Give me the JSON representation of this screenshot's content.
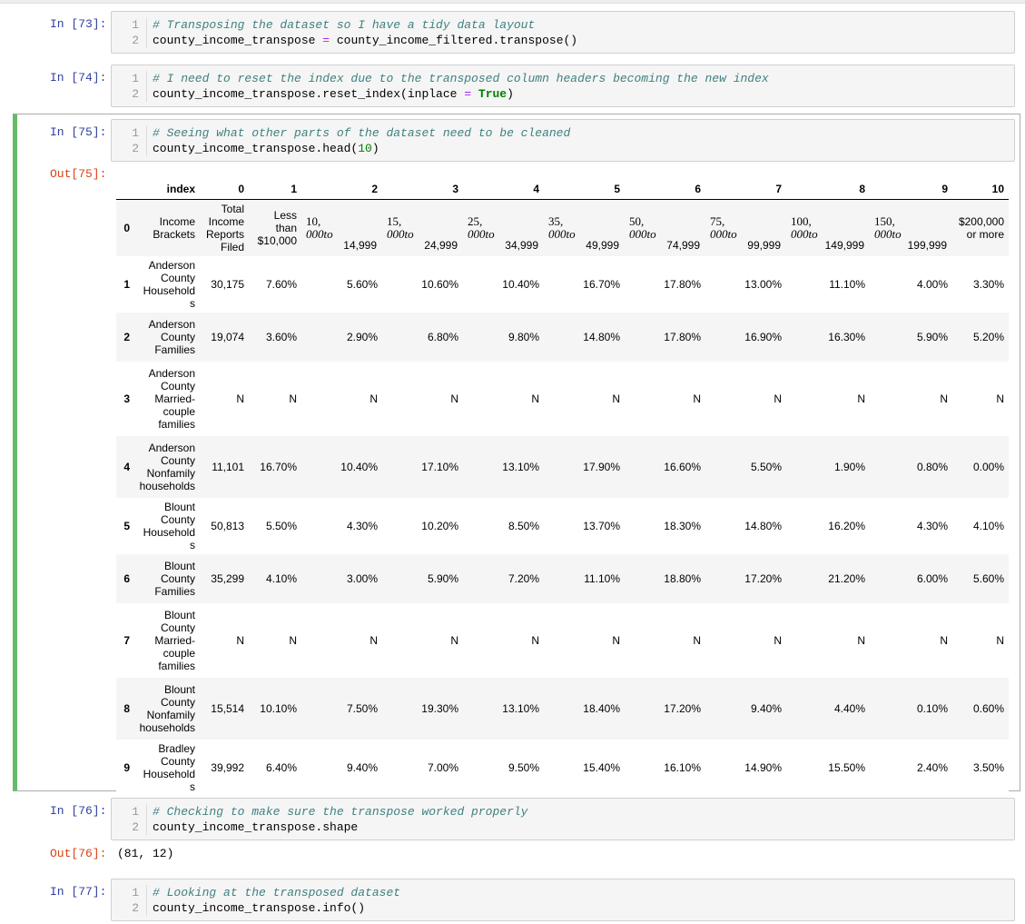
{
  "cells": {
    "c73": {
      "prompt": "In [73]:",
      "lines": [
        {
          "n": "1",
          "comment": "# Transposing the dataset so I have a tidy data layout"
        },
        {
          "n": "2",
          "lhs": "county_income_transpose ",
          "op": "=",
          "rhs": " county_income_filtered.transpose()"
        }
      ]
    },
    "c74": {
      "prompt": "In [74]:",
      "lines": [
        {
          "n": "1",
          "comment": "# I need to reset the index due to the transposed column headers becoming the new index"
        },
        {
          "n": "2",
          "pre": "county_income_transpose.reset_index(inplace ",
          "op": "=",
          "mid": " ",
          "kw": "True",
          "post": ")"
        }
      ]
    },
    "c75": {
      "prompt": "In [75]:",
      "out_prompt": "Out[75]:",
      "lines": [
        {
          "n": "1",
          "comment": "# Seeing what other parts of the dataset need to be cleaned"
        },
        {
          "n": "2",
          "pre": "county_income_transpose.head(",
          "num": "10",
          "post": ")"
        }
      ]
    },
    "c76": {
      "prompt": "In [76]:",
      "out_prompt": "Out[76]:",
      "output": "(81, 12)",
      "lines": [
        {
          "n": "1",
          "comment": "# Checking to make sure the transpose worked properly"
        },
        {
          "n": "2",
          "code": "county_income_transpose.shape"
        }
      ]
    },
    "c77": {
      "prompt": "In [77]:",
      "lines": [
        {
          "n": "1",
          "comment": "# Looking at the transposed dataset"
        },
        {
          "n": "2",
          "code": "county_income_transpose.info()"
        }
      ]
    }
  },
  "table": {
    "columns": [
      "",
      "index",
      "0",
      "1",
      "2",
      "3",
      "4",
      "5",
      "6",
      "7",
      "8",
      "9",
      "10"
    ],
    "header_row": {
      "idx": "0",
      "index": "Income Brackets",
      "c0": "Total Income Reports Filed",
      "c1": "Less than $10,000",
      "c2": {
        "top": "10,",
        "mid": "000to",
        "sub": "14,999"
      },
      "c3": {
        "top": "15,",
        "mid": "000to",
        "sub": "24,999"
      },
      "c4": {
        "top": "25,",
        "mid": "000to",
        "sub": "34,999"
      },
      "c5": {
        "top": "35,",
        "mid": "000to",
        "sub": "49,999"
      },
      "c6": {
        "top": "50,",
        "mid": "000to",
        "sub": "74,999"
      },
      "c7": {
        "top": "75,",
        "mid": "000to",
        "sub": "99,999"
      },
      "c8": {
        "top": "100,",
        "mid": "000to",
        "sub": "149,999"
      },
      "c9": {
        "top": "150,",
        "mid": "000to",
        "sub": "199,999"
      },
      "c10": "$200,000 or more"
    },
    "rows": [
      [
        "1",
        "Anderson County Households",
        "30,175",
        "7.60%",
        "5.60%",
        "10.60%",
        "10.40%",
        "16.70%",
        "17.80%",
        "13.00%",
        "11.10%",
        "4.00%",
        "3.30%"
      ],
      [
        "2",
        "Anderson County Families",
        "19,074",
        "3.60%",
        "2.90%",
        "6.80%",
        "9.80%",
        "14.80%",
        "17.80%",
        "16.90%",
        "16.30%",
        "5.90%",
        "5.20%"
      ],
      [
        "3",
        "Anderson County Married-couple families",
        "N",
        "N",
        "N",
        "N",
        "N",
        "N",
        "N",
        "N",
        "N",
        "N",
        "N"
      ],
      [
        "4",
        "Anderson County Nonfamily households",
        "11,101",
        "16.70%",
        "10.40%",
        "17.10%",
        "13.10%",
        "17.90%",
        "16.60%",
        "5.50%",
        "1.90%",
        "0.80%",
        "0.00%"
      ],
      [
        "5",
        "Blount County Households",
        "50,813",
        "5.50%",
        "4.30%",
        "10.20%",
        "8.50%",
        "13.70%",
        "18.30%",
        "14.80%",
        "16.20%",
        "4.30%",
        "4.10%"
      ],
      [
        "6",
        "Blount County Families",
        "35,299",
        "4.10%",
        "3.00%",
        "5.90%",
        "7.20%",
        "11.10%",
        "18.80%",
        "17.20%",
        "21.20%",
        "6.00%",
        "5.60%"
      ],
      [
        "7",
        "Blount County Married-couple families",
        "N",
        "N",
        "N",
        "N",
        "N",
        "N",
        "N",
        "N",
        "N",
        "N",
        "N"
      ],
      [
        "8",
        "Blount County Nonfamily households",
        "15,514",
        "10.10%",
        "7.50%",
        "19.30%",
        "13.10%",
        "18.40%",
        "17.20%",
        "9.40%",
        "4.40%",
        "0.10%",
        "0.60%"
      ],
      [
        "9",
        "Bradley County Households",
        "39,992",
        "6.40%",
        "9.40%",
        "7.00%",
        "9.50%",
        "15.40%",
        "16.10%",
        "14.90%",
        "15.50%",
        "2.40%",
        "3.50%"
      ]
    ]
  }
}
